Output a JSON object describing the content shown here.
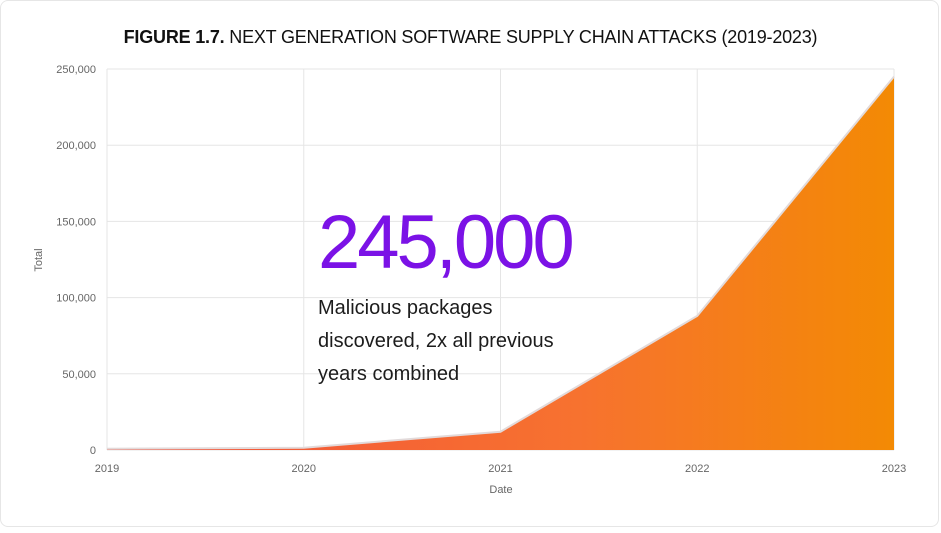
{
  "title": {
    "prefix": "FIGURE 1.7.",
    "text": "NEXT GENERATION SOFTWARE SUPPLY CHAIN ATTACKS (2019-2023)"
  },
  "callout": {
    "number": "245,000",
    "text": "Malicious packages discovered, 2x all previous years combined",
    "color": "#7b12e6"
  },
  "chart_data": {
    "type": "area",
    "x": [
      "2019",
      "2020",
      "2021",
      "2022",
      "2023"
    ],
    "series": [
      {
        "values": [
          800,
          1500,
          12000,
          88000,
          245000
        ]
      }
    ],
    "ylim": [
      0,
      250000
    ],
    "yticks": [
      0,
      50000,
      100000,
      150000,
      200000,
      250000
    ],
    "ytick_labels": [
      "0",
      "50,000",
      "100,000",
      "150,000",
      "200,000",
      "250,000"
    ],
    "xlabel": "Date",
    "ylabel": "Total",
    "grid": true,
    "fill_gradient": [
      "#f24f3c",
      "#f7722f",
      "#f38a04"
    ]
  }
}
